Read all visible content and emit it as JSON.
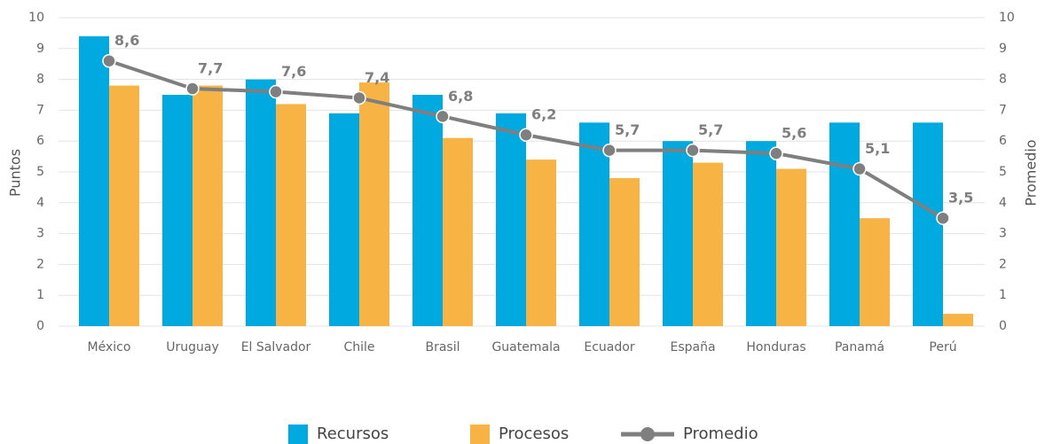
{
  "chart_data": {
    "type": "bar",
    "categories": [
      "México",
      "Uruguay",
      "El Salvador",
      "Chile",
      "Brasil",
      "Guatemala",
      "Ecuador",
      "España",
      "Honduras",
      "Panamá",
      "Perú"
    ],
    "series": [
      {
        "name": "Recursos",
        "color": "#00a9e0",
        "values": [
          9.4,
          7.5,
          8.0,
          6.9,
          7.5,
          6.9,
          6.6,
          6.0,
          6.0,
          6.6,
          6.6
        ]
      },
      {
        "name": "Procesos",
        "color": "#f7b445",
        "values": [
          7.8,
          7.8,
          7.2,
          7.9,
          6.1,
          5.4,
          4.8,
          5.3,
          5.1,
          3.5,
          0.4
        ]
      },
      {
        "name": "Promedio",
        "color": "#7f7f80",
        "type": "line",
        "axis": "y2",
        "values": [
          8.6,
          7.7,
          7.6,
          7.4,
          6.8,
          6.2,
          5.7,
          5.7,
          5.6,
          5.1,
          3.5
        ],
        "value_labels": [
          "8,6",
          "7,7",
          "7,6",
          "7,4",
          "6,8",
          "6,2",
          "5,7",
          "5,7",
          "5,6",
          "5,1",
          "3,5"
        ]
      }
    ],
    "ylabel": "Puntos",
    "y2label": "Promedio",
    "ylim": [
      0,
      10
    ],
    "yticks": [
      0,
      1,
      2,
      3,
      4,
      5,
      6,
      7,
      8,
      9,
      10
    ],
    "y2lim": [
      0,
      10
    ],
    "y2ticks": [
      0,
      1,
      2,
      3,
      4,
      5,
      6,
      7,
      8,
      9,
      10
    ],
    "grid": true,
    "legend": "bottom"
  }
}
